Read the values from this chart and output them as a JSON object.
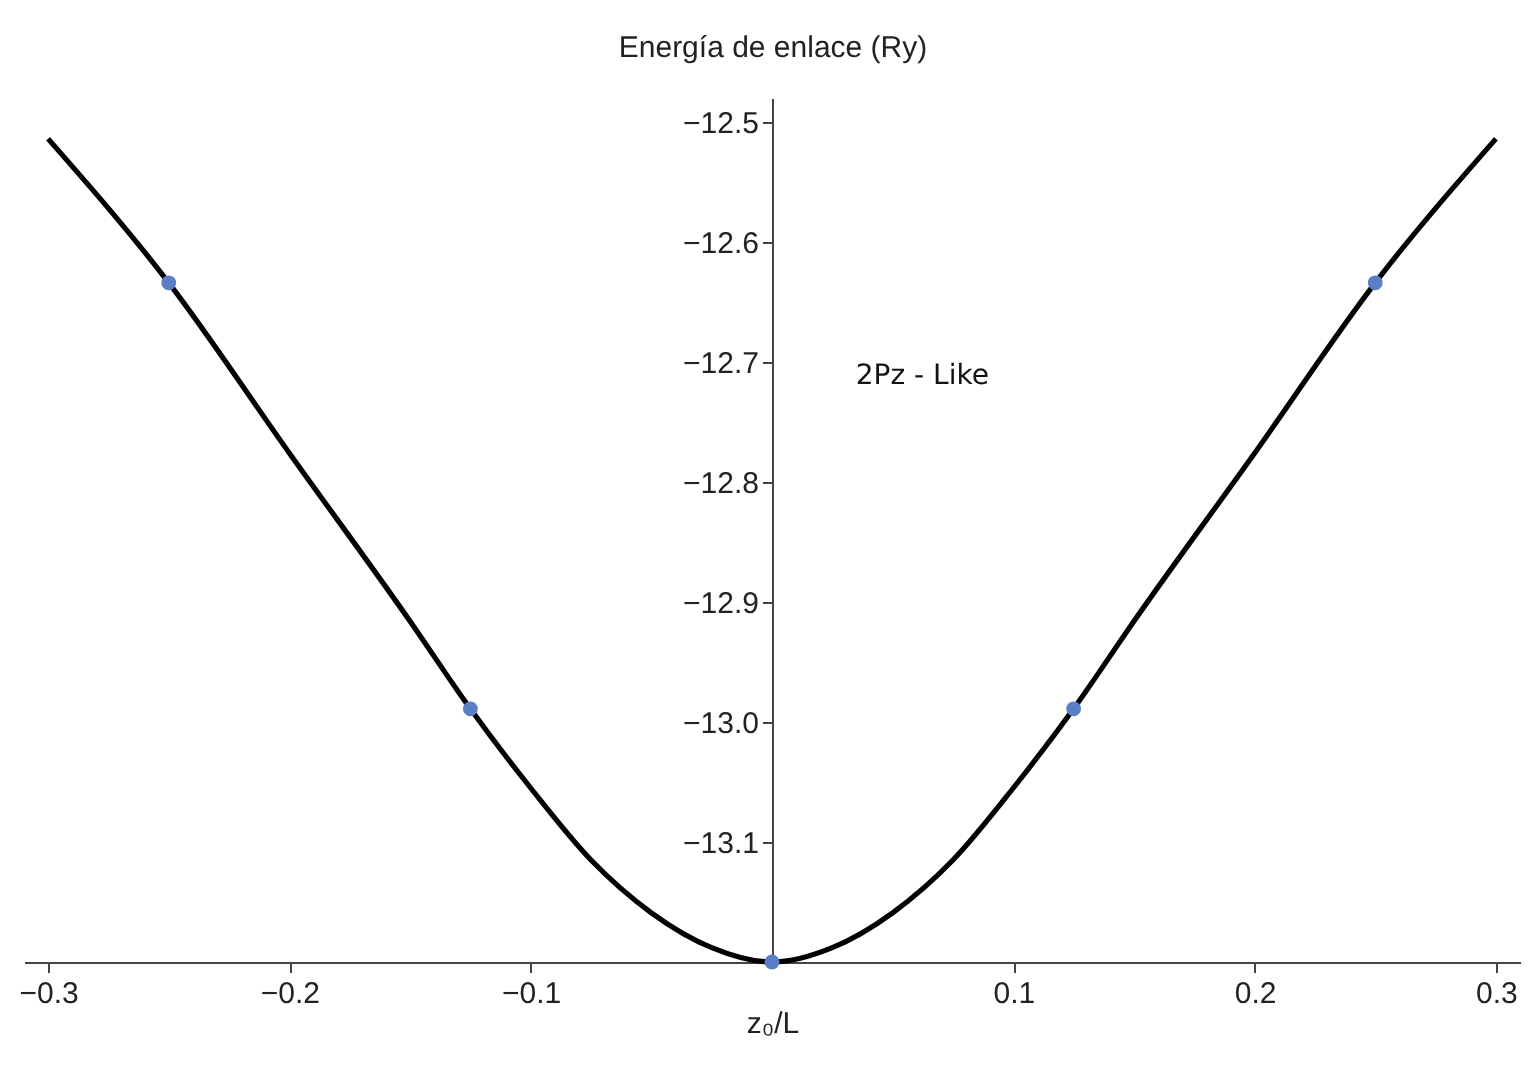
{
  "chart_data": {
    "type": "line",
    "xlabel": "z₀/L",
    "ylabel": "Energía de enlace (Ry)",
    "annotations": [
      "2Pz - Like"
    ],
    "xlim": [
      -0.31,
      0.31
    ],
    "ylim": [
      -13.2,
      -12.48
    ],
    "xticks": [
      {
        "value": -0.3,
        "label": "−0.3"
      },
      {
        "value": -0.2,
        "label": "−0.2"
      },
      {
        "value": -0.1,
        "label": "−0.1"
      },
      0.1,
      0.2,
      0.3
    ],
    "yticks": [
      {
        "value": -13.1,
        "label": "−13.1"
      },
      {
        "value": -13.0,
        "label": "−13.0"
      },
      {
        "value": -12.9,
        "label": "−12.9"
      },
      {
        "value": -12.8,
        "label": "−12.8"
      },
      {
        "value": -12.7,
        "label": "−12.7"
      },
      {
        "value": -12.6,
        "label": "−12.6"
      },
      {
        "value": -12.5,
        "label": "−12.5"
      }
    ],
    "grid": false,
    "series": [
      {
        "color": "#000000",
        "marker": "none",
        "x": [
          -0.3,
          -0.25,
          -0.2,
          -0.15,
          -0.125,
          -0.1,
          -0.075,
          -0.05,
          -0.025,
          0,
          0.025,
          0.05,
          0.075,
          0.1,
          0.125,
          0.15,
          0.2,
          0.25,
          0.3
        ],
        "values": [
          -12.514,
          -12.634,
          -12.776,
          -12.916,
          -12.989,
          -13.055,
          -13.115,
          -13.159,
          -13.188,
          -13.2,
          -13.188,
          -13.159,
          -13.115,
          -13.055,
          -12.989,
          -12.916,
          -12.776,
          -12.634,
          -12.514
        ]
      },
      {
        "type": "scatter",
        "color": "#5b7fc4",
        "marker": "circle",
        "x": [
          -0.25,
          -0.125,
          0,
          0.125,
          0.25
        ],
        "values": [
          -12.634,
          -12.989,
          -13.2,
          -12.989,
          -12.634
        ]
      }
    ]
  }
}
